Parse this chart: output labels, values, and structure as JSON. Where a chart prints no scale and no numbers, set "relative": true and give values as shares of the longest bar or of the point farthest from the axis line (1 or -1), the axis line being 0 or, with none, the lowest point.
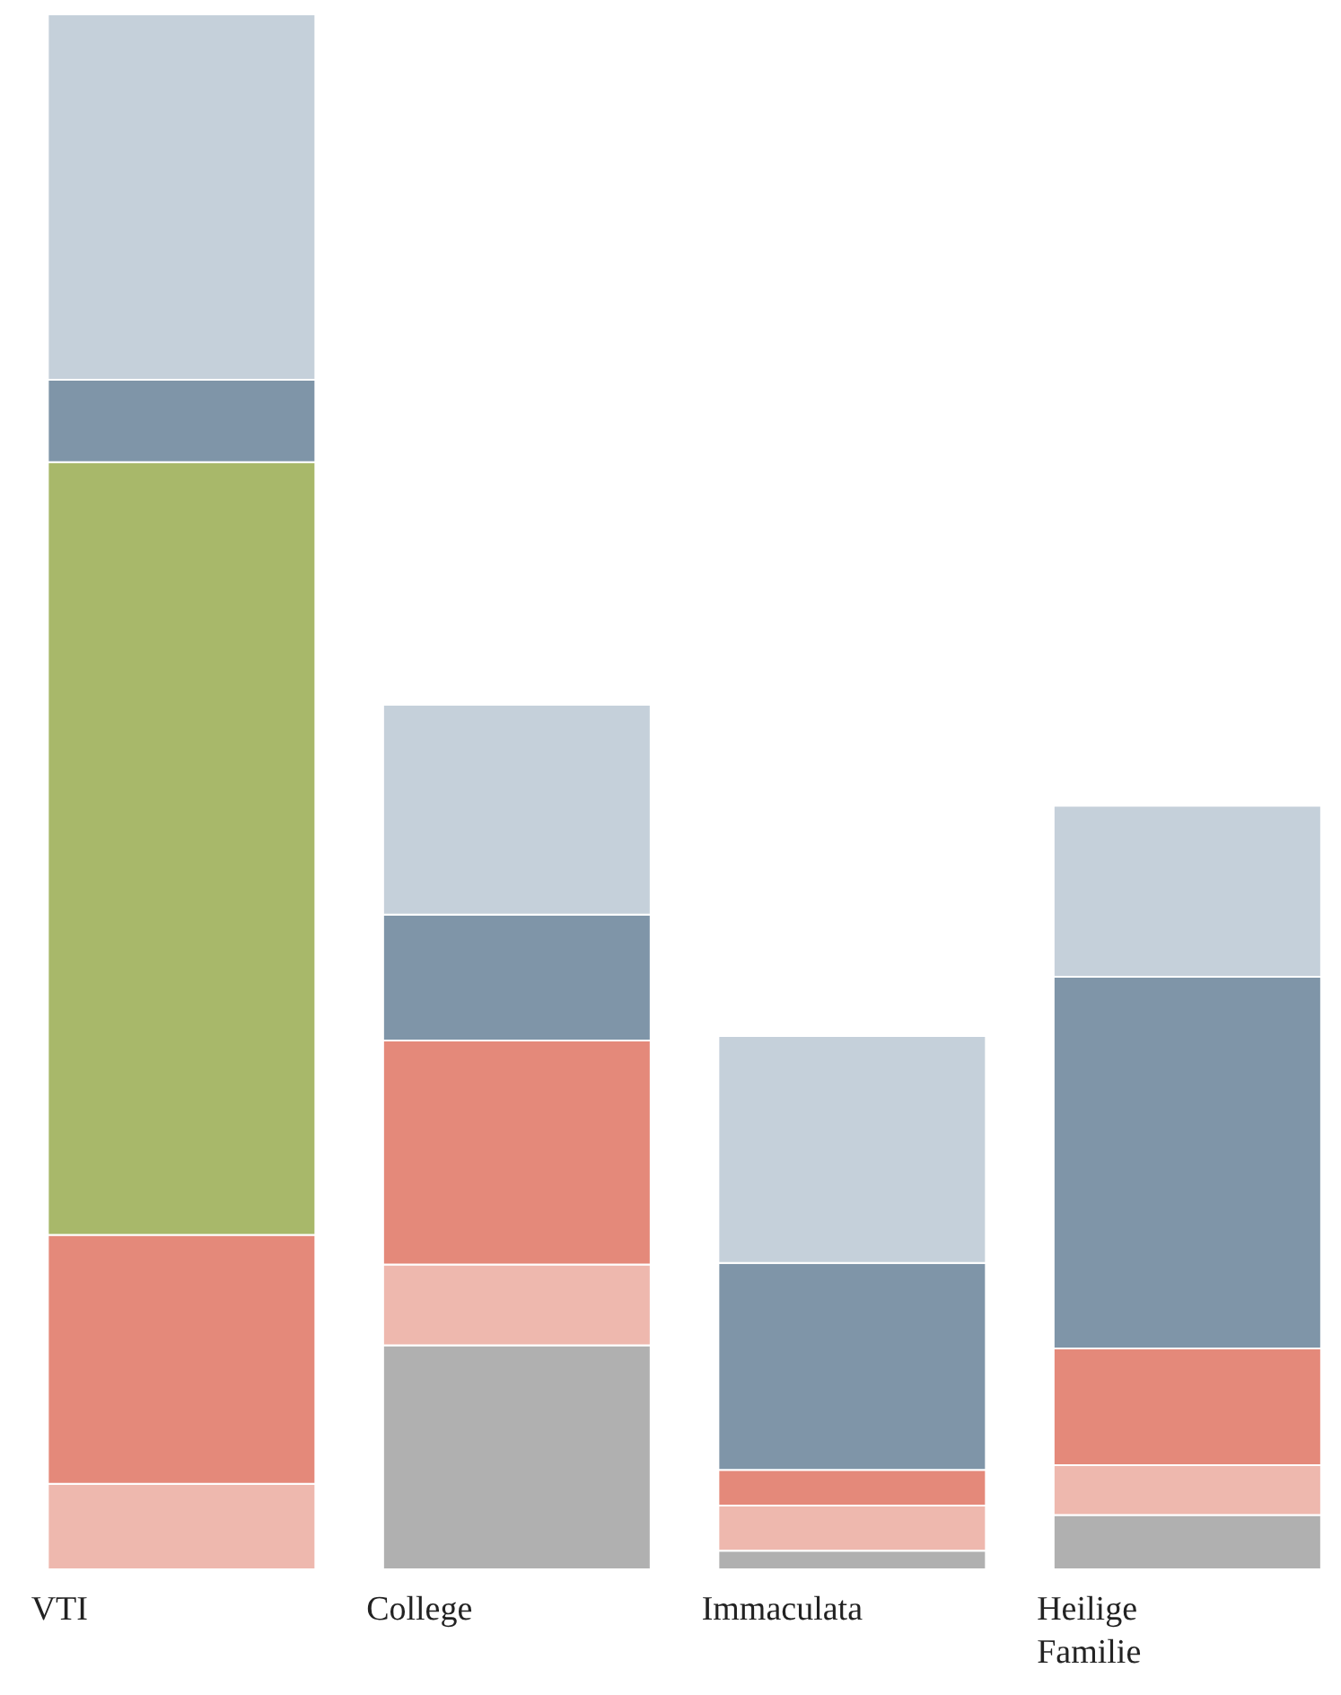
{
  "chart_data": {
    "type": "bar",
    "relative": true,
    "stacked": true,
    "legend": false,
    "grid": false,
    "categories": [
      "VTI",
      "College",
      "Immaculata",
      "Heilige Familie"
    ],
    "series": [
      {
        "color": "#b0b0b0",
        "values": [
          0,
          0.144,
          0.012,
          0.035
        ]
      },
      {
        "color": "#eeb8ae",
        "values": [
          0.055,
          0.052,
          0.029,
          0.032
        ]
      },
      {
        "color": "#e4897a",
        "values": [
          0.16,
          0.144,
          0.023,
          0.075
        ]
      },
      {
        "color": "#a8b86a",
        "values": [
          0.497,
          0,
          0,
          0
        ]
      },
      {
        "color": "#7f95a8",
        "values": [
          0.053,
          0.081,
          0.133,
          0.239
        ]
      },
      {
        "color": "#c5d0da",
        "values": [
          0.235,
          0.135,
          0.146,
          0.11
        ]
      }
    ]
  }
}
